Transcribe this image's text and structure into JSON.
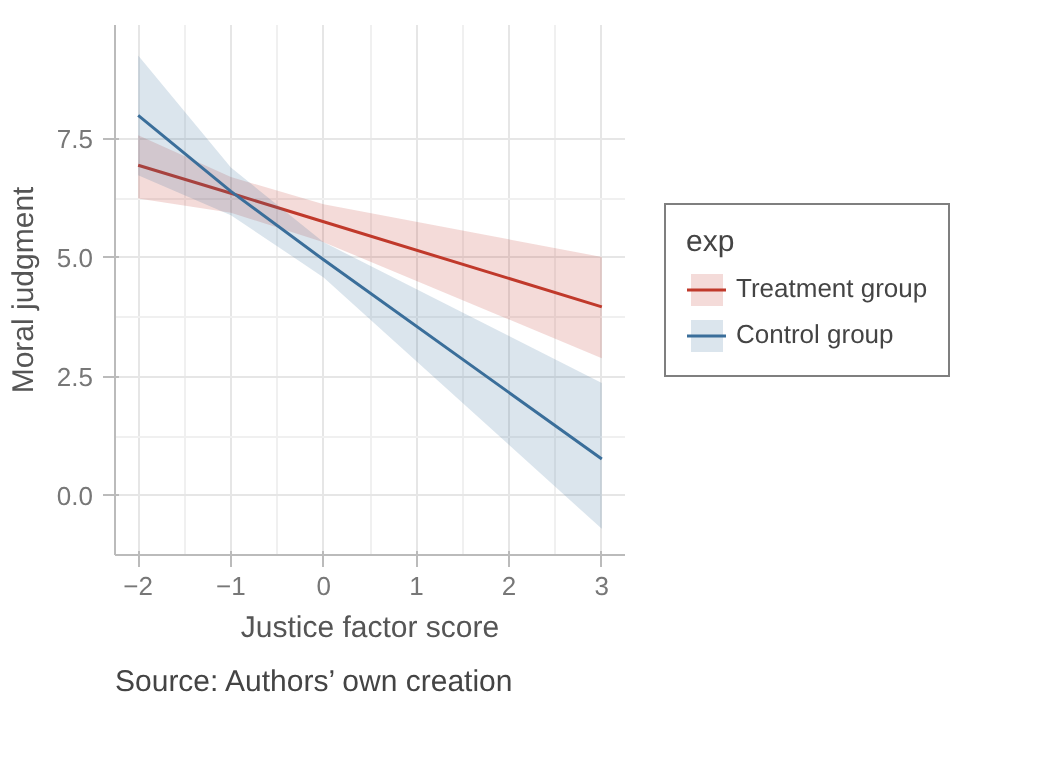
{
  "chart_data": {
    "type": "line",
    "xlabel": "Justice factor score",
    "ylabel": "Moral judgment",
    "legend_title": "exp",
    "x": [
      -2,
      -1,
      0,
      3
    ],
    "series": [
      {
        "name": "Treatment group",
        "color": "#c0392b",
        "values": [
          6.95,
          6.36,
          5.76,
          3.97
        ],
        "lower": [
          6.25,
          5.95,
          5.33,
          2.89
        ],
        "upper": [
          7.58,
          6.7,
          6.13,
          5.02
        ]
      },
      {
        "name": "Control group",
        "color": "#3a6e9a",
        "values": [
          8.0,
          6.4,
          4.96,
          0.77
        ],
        "lower": [
          6.74,
          5.9,
          4.59,
          -0.7
        ],
        "upper": [
          9.26,
          6.9,
          5.33,
          2.37
        ]
      }
    ],
    "xlim": [
      -2.25,
      3.25
    ],
    "ylim": [
      -1.25,
      9.9
    ],
    "xticks": [
      {
        "value": -2,
        "label": "−2"
      },
      {
        "value": -1,
        "label": "−1"
      },
      0,
      1,
      2,
      3
    ],
    "yticks": [
      {
        "value": 0,
        "label": "0.0"
      },
      2.5,
      {
        "value": 5,
        "label": "5.0"
      },
      7.5
    ],
    "grid": true,
    "legend": "right",
    "annotations": [
      "Source: Authors’ own creation"
    ]
  }
}
